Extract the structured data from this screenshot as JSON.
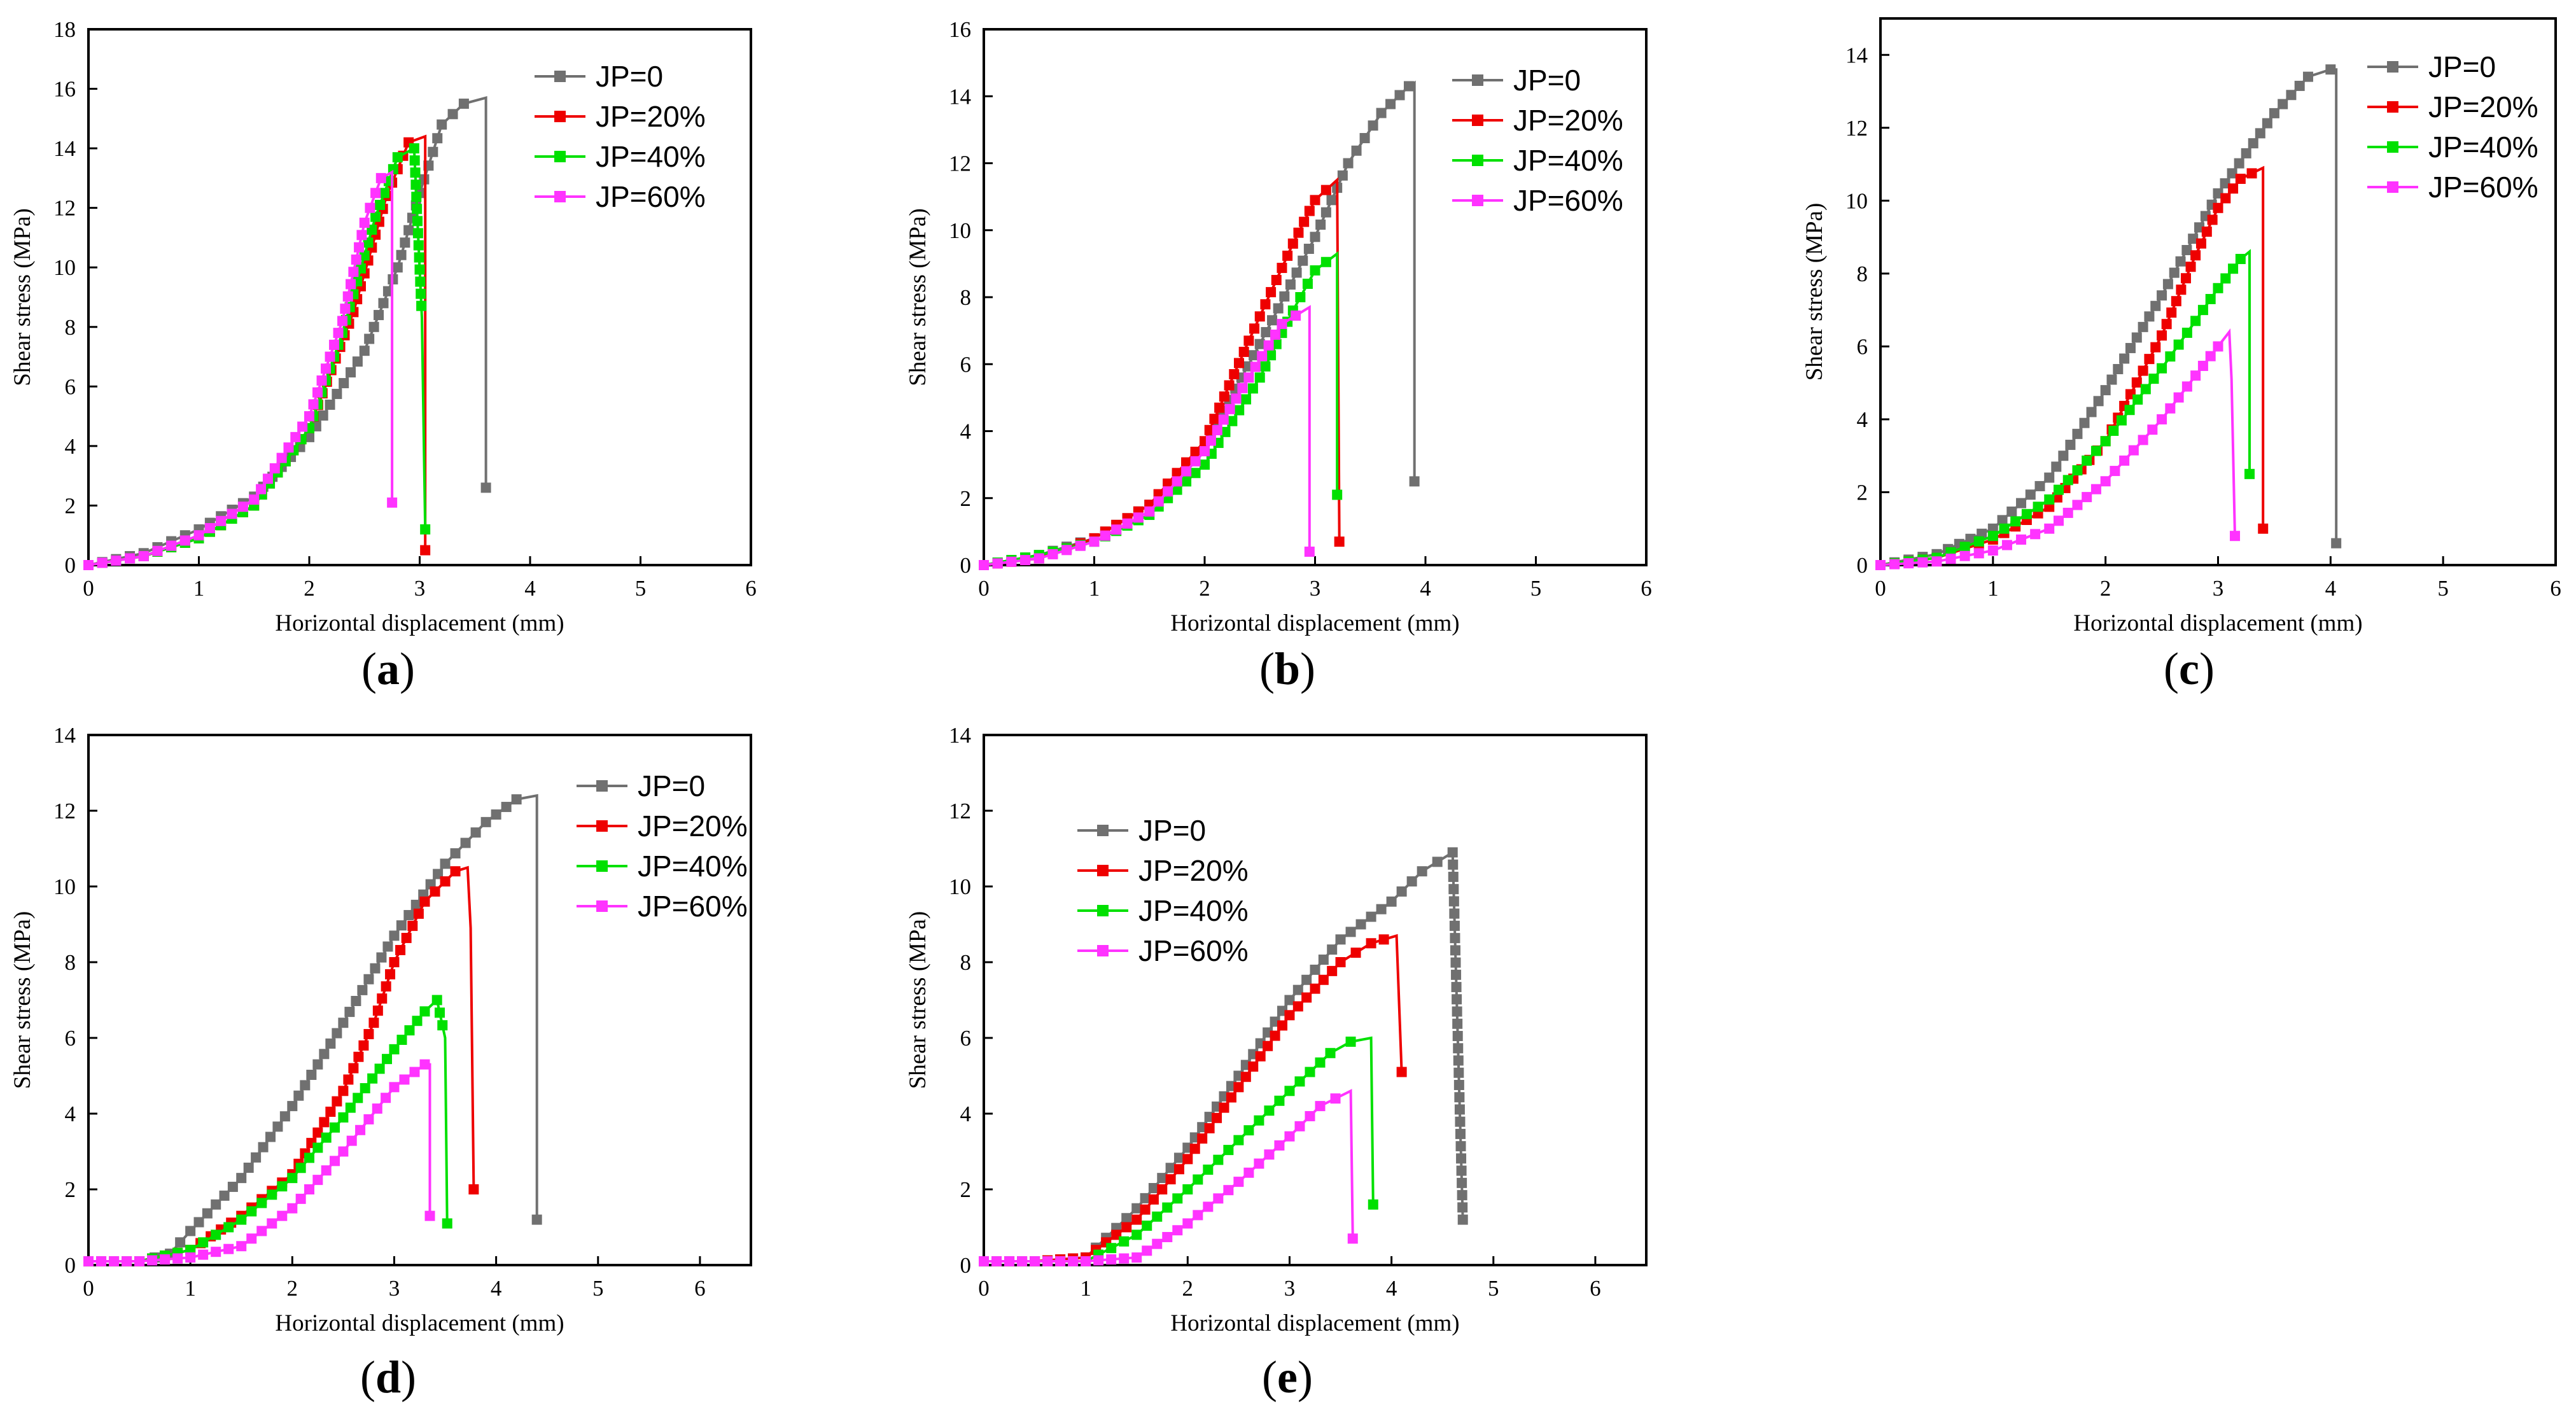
{
  "colors": {
    "JP=0": "#707070",
    "JP=20%": "#ee0000",
    "JP=40%": "#00e000",
    "JP=60%": "#ff33ff"
  },
  "chart_data": [
    {
      "type": "line",
      "panel": "a",
      "xlabel": "Horizontal displacement (mm)",
      "ylabel": "Shear stress (MPa)",
      "xlim": [
        0,
        6
      ],
      "ylim": [
        0,
        18
      ],
      "xticks": [
        0,
        1,
        2,
        3,
        4,
        5,
        6
      ],
      "yticks": [
        0,
        2,
        4,
        6,
        8,
        10,
        12,
        14,
        16,
        18
      ],
      "legend_position": "top-right",
      "series": [
        {
          "name": "JP=0",
          "points": [
            [
              0,
              0
            ],
            [
              0.5,
              0.4
            ],
            [
              1,
              1.2
            ],
            [
              1.5,
              2.3
            ],
            [
              2,
              4.3
            ],
            [
              2.5,
              7.2
            ],
            [
              2.8,
              10
            ],
            [
              3,
              12.5
            ],
            [
              3.2,
              14.8
            ],
            [
              3.4,
              15.5
            ],
            [
              3.6,
              15.7
            ],
            [
              3.6,
              2.6
            ]
          ]
        },
        {
          "name": "JP=20%",
          "points": [
            [
              0,
              0
            ],
            [
              0.5,
              0.3
            ],
            [
              1,
              0.9
            ],
            [
              1.5,
              2.0
            ],
            [
              2,
              4.6
            ],
            [
              2.4,
              8.5
            ],
            [
              2.7,
              12.4
            ],
            [
              2.9,
              14.2
            ],
            [
              3.05,
              14.4
            ],
            [
              3.05,
              0.5
            ]
          ]
        },
        {
          "name": "JP=40%",
          "points": [
            [
              0,
              0
            ],
            [
              0.5,
              0.3
            ],
            [
              1,
              0.9
            ],
            [
              1.5,
              2.0
            ],
            [
              2,
              4.6
            ],
            [
              2.3,
              7.8
            ],
            [
              2.6,
              11.7
            ],
            [
              2.8,
              13.7
            ],
            [
              2.95,
              14.0
            ],
            [
              3.02,
              8.3
            ],
            [
              3.05,
              1.2
            ]
          ]
        },
        {
          "name": "JP=60%",
          "points": [
            [
              0,
              0
            ],
            [
              0.5,
              0.3
            ],
            [
              1,
              1.0
            ],
            [
              1.5,
              2.2
            ],
            [
              2,
              5.0
            ],
            [
              2.3,
              8.2
            ],
            [
              2.5,
              11.5
            ],
            [
              2.65,
              13.0
            ],
            [
              2.75,
              13.2
            ],
            [
              2.75,
              2.1
            ]
          ]
        }
      ]
    },
    {
      "type": "line",
      "panel": "b",
      "xlabel": "Horizontal displacement (mm)",
      "ylabel": "Shear stress (MPa)",
      "xlim": [
        0,
        6
      ],
      "ylim": [
        0,
        16
      ],
      "xticks": [
        0,
        1,
        2,
        3,
        4,
        5,
        6
      ],
      "yticks": [
        0,
        2,
        4,
        6,
        8,
        10,
        12,
        14,
        16
      ],
      "legend_position": "top-right",
      "series": [
        {
          "name": "JP=0",
          "points": [
            [
              0,
              0
            ],
            [
              0.5,
              0.3
            ],
            [
              1,
              0.8
            ],
            [
              1.5,
              1.8
            ],
            [
              2,
              3.6
            ],
            [
              2.5,
              6.6
            ],
            [
              3,
              9.8
            ],
            [
              3.3,
              12.0
            ],
            [
              3.6,
              13.5
            ],
            [
              3.85,
              14.3
            ],
            [
              3.9,
              14.4
            ],
            [
              3.9,
              2.5
            ]
          ]
        },
        {
          "name": "JP=20%",
          "points": [
            [
              0,
              0
            ],
            [
              0.5,
              0.2
            ],
            [
              1,
              0.8
            ],
            [
              1.5,
              1.8
            ],
            [
              2,
              3.7
            ],
            [
              2.4,
              6.7
            ],
            [
              2.8,
              9.6
            ],
            [
              3.0,
              10.9
            ],
            [
              3.2,
              11.5
            ],
            [
              3.22,
              0.7
            ]
          ]
        },
        {
          "name": "JP=40%",
          "points": [
            [
              0,
              0
            ],
            [
              0.5,
              0.3
            ],
            [
              1,
              0.7
            ],
            [
              1.5,
              1.5
            ],
            [
              2,
              3.0
            ],
            [
              2.5,
              5.6
            ],
            [
              2.8,
              7.6
            ],
            [
              3.0,
              8.8
            ],
            [
              3.2,
              9.3
            ],
            [
              3.2,
              2.1
            ]
          ]
        },
        {
          "name": "JP=60%",
          "points": [
            [
              0,
              0
            ],
            [
              0.5,
              0.2
            ],
            [
              1,
              0.7
            ],
            [
              1.5,
              1.6
            ],
            [
              2,
              3.4
            ],
            [
              2.4,
              5.6
            ],
            [
              2.7,
              7.2
            ],
            [
              2.95,
              7.7
            ],
            [
              2.95,
              0.4
            ]
          ]
        }
      ]
    },
    {
      "type": "line",
      "panel": "c",
      "xlabel": "Horizontal displacement (mm)",
      "ylabel": "Shear stress (MPa)",
      "xlim": [
        0,
        6
      ],
      "ylim": [
        0,
        15
      ],
      "xticks": [
        0,
        1,
        2,
        3,
        4,
        5,
        6
      ],
      "yticks": [
        0,
        2,
        4,
        6,
        8,
        10,
        12,
        14
      ],
      "legend_position": "top-right",
      "series": [
        {
          "name": "JP=0",
          "points": [
            [
              0,
              0
            ],
            [
              0.5,
              0.3
            ],
            [
              1,
              1.0
            ],
            [
              1.5,
              2.4
            ],
            [
              2,
              4.8
            ],
            [
              2.5,
              7.4
            ],
            [
              3,
              10.2
            ],
            [
              3.5,
              12.4
            ],
            [
              3.8,
              13.4
            ],
            [
              4.0,
              13.6
            ],
            [
              4.05,
              13.6
            ],
            [
              4.05,
              0.6
            ]
          ]
        },
        {
          "name": "JP=20%",
          "points": [
            [
              0,
              0
            ],
            [
              0.5,
              0.2
            ],
            [
              1,
              0.7
            ],
            [
              1.5,
              1.6
            ],
            [
              2,
              3.4
            ],
            [
              2.5,
              6.3
            ],
            [
              2.8,
              8.5
            ],
            [
              3.0,
              9.8
            ],
            [
              3.2,
              10.6
            ],
            [
              3.4,
              10.9
            ],
            [
              3.4,
              1.0
            ]
          ]
        },
        {
          "name": "JP=40%",
          "points": [
            [
              0,
              0
            ],
            [
              0.5,
              0.2
            ],
            [
              1,
              0.8
            ],
            [
              1.5,
              1.8
            ],
            [
              2,
              3.4
            ],
            [
              2.5,
              5.4
            ],
            [
              2.8,
              6.7
            ],
            [
              3.0,
              7.6
            ],
            [
              3.2,
              8.4
            ],
            [
              3.28,
              8.6
            ],
            [
              3.28,
              2.5
            ]
          ]
        },
        {
          "name": "JP=60%",
          "points": [
            [
              0,
              0
            ],
            [
              0.5,
              0.1
            ],
            [
              1,
              0.4
            ],
            [
              1.5,
              1.0
            ],
            [
              2,
              2.3
            ],
            [
              2.5,
              4.0
            ],
            [
              2.8,
              5.2
            ],
            [
              3.0,
              6.0
            ],
            [
              3.1,
              6.4
            ],
            [
              3.12,
              5.1
            ],
            [
              3.15,
              0.8
            ]
          ]
        }
      ]
    },
    {
      "type": "line",
      "panel": "d",
      "xlabel": "Horizontal displacement (mm)",
      "ylabel": "Shear stress (MPa)",
      "xlim": [
        0,
        6.5
      ],
      "ylim": [
        0,
        14
      ],
      "xticks": [
        0,
        1,
        2,
        3,
        4,
        5,
        6
      ],
      "yticks": [
        0,
        2,
        4,
        6,
        8,
        10,
        12,
        14
      ],
      "legend_position": "top-right",
      "series": [
        {
          "name": "JP=0",
          "points": [
            [
              0,
              0.1
            ],
            [
              0.5,
              0.1
            ],
            [
              0.8,
              0.3
            ],
            [
              1,
              0.9
            ],
            [
              1.5,
              2.3
            ],
            [
              2,
              4.2
            ],
            [
              2.5,
              6.4
            ],
            [
              3,
              8.7
            ],
            [
              3.5,
              10.6
            ],
            [
              3.9,
              11.7
            ],
            [
              4.2,
              12.3
            ],
            [
              4.4,
              12.4
            ],
            [
              4.4,
              1.2
            ]
          ]
        },
        {
          "name": "JP=20%",
          "points": [
            [
              0,
              0.1
            ],
            [
              0.5,
              0.1
            ],
            [
              1,
              0.4
            ],
            [
              1.5,
              1.3
            ],
            [
              2,
              2.4
            ],
            [
              2.5,
              4.6
            ],
            [
              2.8,
              6.4
            ],
            [
              3,
              8.0
            ],
            [
              3.3,
              9.6
            ],
            [
              3.6,
              10.4
            ],
            [
              3.72,
              10.5
            ],
            [
              3.75,
              8.9
            ],
            [
              3.78,
              2.0
            ]
          ]
        },
        {
          "name": "JP=40%",
          "points": [
            [
              0,
              0.1
            ],
            [
              0.5,
              0.1
            ],
            [
              1,
              0.4
            ],
            [
              1.5,
              1.2
            ],
            [
              2,
              2.3
            ],
            [
              2.5,
              3.9
            ],
            [
              3,
              5.7
            ],
            [
              3.3,
              6.7
            ],
            [
              3.42,
              7.0
            ],
            [
              3.5,
              6.0
            ],
            [
              3.52,
              1.1
            ]
          ]
        },
        {
          "name": "JP=60%",
          "points": [
            [
              0,
              0.1
            ],
            [
              0.5,
              0.1
            ],
            [
              1,
              0.2
            ],
            [
              1.5,
              0.5
            ],
            [
              2,
              1.5
            ],
            [
              2.5,
              3.0
            ],
            [
              3,
              4.7
            ],
            [
              3.3,
              5.3
            ],
            [
              3.35,
              5.3
            ],
            [
              3.35,
              1.3
            ]
          ]
        }
      ]
    },
    {
      "type": "line",
      "panel": "e",
      "xlabel": "Horizontal displacement (mm)",
      "ylabel": "Shear stress (MPa)",
      "xlim": [
        0,
        6.5
      ],
      "ylim": [
        0,
        14
      ],
      "xticks": [
        0,
        1,
        2,
        3,
        4,
        5,
        6
      ],
      "yticks": [
        0,
        2,
        4,
        6,
        8,
        10,
        12,
        14
      ],
      "legend_position": "top-left",
      "series": [
        {
          "name": "JP=0",
          "points": [
            [
              0,
              0.1
            ],
            [
              0.5,
              0.1
            ],
            [
              1,
              0.2
            ],
            [
              1.5,
              1.5
            ],
            [
              2,
              3.1
            ],
            [
              2.5,
              5.0
            ],
            [
              3,
              7.0
            ],
            [
              3.5,
              8.6
            ],
            [
              4,
              9.6
            ],
            [
              4.3,
              10.4
            ],
            [
              4.6,
              10.9
            ],
            [
              4.7,
              1.2
            ]
          ]
        },
        {
          "name": "JP=20%",
          "points": [
            [
              0,
              0.1
            ],
            [
              0.5,
              0.1
            ],
            [
              1,
              0.2
            ],
            [
              1.5,
              1.2
            ],
            [
              2,
              2.8
            ],
            [
              2.5,
              4.7
            ],
            [
              3,
              6.6
            ],
            [
              3.5,
              8.0
            ],
            [
              3.8,
              8.5
            ],
            [
              4.05,
              8.7
            ],
            [
              4.1,
              5.1
            ]
          ]
        },
        {
          "name": "JP=40%",
          "points": [
            [
              0,
              0.1
            ],
            [
              0.5,
              0.1
            ],
            [
              1,
              0.1
            ],
            [
              1.5,
              0.8
            ],
            [
              2,
              2.0
            ],
            [
              2.5,
              3.3
            ],
            [
              3,
              4.6
            ],
            [
              3.4,
              5.6
            ],
            [
              3.6,
              5.9
            ],
            [
              3.8,
              6.0
            ],
            [
              3.82,
              1.6
            ]
          ]
        },
        {
          "name": "JP=60%",
          "points": [
            [
              0,
              0.1
            ],
            [
              0.5,
              0.1
            ],
            [
              1,
              0.1
            ],
            [
              1.5,
              0.2
            ],
            [
              2,
              1.1
            ],
            [
              2.5,
              2.2
            ],
            [
              3,
              3.4
            ],
            [
              3.3,
              4.2
            ],
            [
              3.6,
              4.6
            ],
            [
              3.62,
              0.7
            ]
          ]
        }
      ]
    }
  ],
  "panel_labels": [
    {
      "open": "(",
      "letter": "a",
      "close": ")"
    },
    {
      "open": "(",
      "letter": "b",
      "close": ")"
    },
    {
      "open": "(",
      "letter": "c",
      "close": ")"
    },
    {
      "open": "(",
      "letter": "d",
      "close": ")"
    },
    {
      "open": "(",
      "letter": "e",
      "close": ")"
    }
  ]
}
